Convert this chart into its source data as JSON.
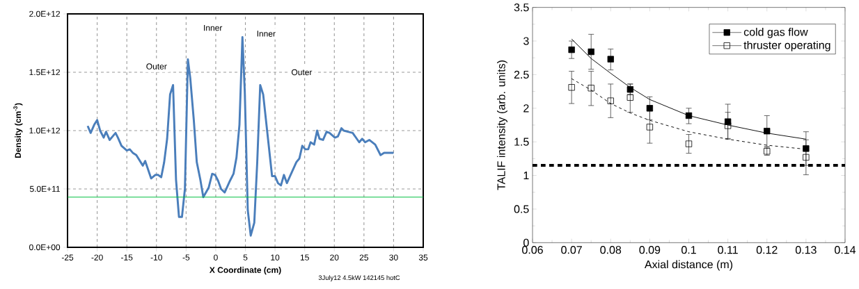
{
  "chart_data": [
    {
      "type": "line",
      "xlabel": "X Coordinate (cm)",
      "ylabel": "Density (cm$^{-3}$)",
      "xlim": [
        -25,
        35
      ],
      "ylim": [
        0,
        2000000000000.0
      ],
      "xticks": [
        -25,
        -20,
        -15,
        -10,
        -5,
        0,
        5,
        10,
        15,
        20,
        25,
        30,
        35
      ],
      "yticks": [
        {
          "value": 0,
          "label": "0.0E+00"
        },
        {
          "value": 500000000000.0,
          "label": "5.0E+11"
        },
        {
          "value": 1000000000000.0,
          "label": "1.0E+12"
        },
        {
          "value": 1500000000000.0,
          "label": "1.5E+12"
        },
        {
          "value": 2000000000000.0,
          "label": "2.0E+12"
        }
      ],
      "grid": true,
      "legend": false,
      "marker": "none",
      "line_style": "solid",
      "series": [
        {
          "color": "#4a7ebb",
          "x": [
            -21.6,
            -21.1,
            -20.5,
            -20,
            -19.5,
            -18.9,
            -18.5,
            -17.9,
            -16.9,
            -16.5,
            -15.9,
            -15.0,
            -14.5,
            -14.0,
            -13.4,
            -12.3,
            -11.9,
            -10.9,
            -10.2,
            -9.7,
            -9.2,
            -8.7,
            -8.2,
            -7.7,
            -7.2,
            -6.7,
            -6.2,
            -5.7,
            -5.2,
            -4.7,
            -4.3,
            -3.7,
            -3.2,
            -2.6,
            -2.1,
            -1.2,
            -0.6,
            -0.1,
            0.4,
            0.9,
            1.5,
            2.4,
            3.0,
            3.5,
            4.0,
            4.5,
            4.9,
            5.4,
            5.9,
            6.5,
            7.0,
            7.5,
            8.0,
            9.5,
            10.0,
            10.5,
            11.0,
            11.5,
            12.0,
            13.6,
            14.1,
            14.6,
            15.1,
            15.6,
            16.0,
            16.6,
            17.1,
            17.5,
            18.1,
            18.7,
            19.2,
            20.1,
            20.6,
            21.2,
            21.6,
            22.3,
            23.1,
            24.2,
            24.7,
            25.2,
            25.9,
            26.9,
            27.8,
            28.4,
            30.0
          ],
          "values": [
            1040000000000.0,
            980000000000.0,
            1050000000000.0,
            1090000000000.0,
            1000000000000.0,
            940000000000.0,
            990000000000.0,
            920000000000.0,
            980000000000.0,
            940000000000.0,
            870000000000.0,
            830000000000.0,
            840000000000.0,
            810000000000.0,
            790000000000.0,
            700000000000.0,
            740000000000.0,
            590000000000.0,
            620000000000.0,
            620000000000.0,
            600000000000.0,
            730000000000.0,
            930000000000.0,
            1310000000000.0,
            1390000000000.0,
            580000000000.0,
            260000000000.0,
            260000000000.0,
            500000000000.0,
            1610000000000.0,
            1450000000000.0,
            1090000000000.0,
            730000000000.0,
            580000000000.0,
            430000000000.0,
            510000000000.0,
            630000000000.0,
            620000000000.0,
            570000000000.0,
            500000000000.0,
            470000000000.0,
            570000000000.0,
            630000000000.0,
            770000000000.0,
            1050000000000.0,
            1800000000000.0,
            1330000000000.0,
            320000000000.0,
            100000000000.0,
            210000000000.0,
            730000000000.0,
            1390000000000.0,
            1310000000000.0,
            610000000000.0,
            610000000000.0,
            550000000000.0,
            530000000000.0,
            620000000000.0,
            550000000000.0,
            730000000000.0,
            760000000000.0,
            870000000000.0,
            840000000000.0,
            840000000000.0,
            900000000000.0,
            880000000000.0,
            1000000000000.0,
            930000000000.0,
            920000000000.0,
            990000000000.0,
            980000000000.0,
            940000000000.0,
            950000000000.0,
            1020000000000.0,
            1000000000000.0,
            990000000000.0,
            980000000000.0,
            900000000000.0,
            930000000000.0,
            900000000000.0,
            920000000000.0,
            880000000000.0,
            790000000000.0,
            810000000000.0,
            810000000000.0
          ]
        }
      ],
      "ref_lines": [
        {
          "axis": "y",
          "value": 430000000000.0,
          "color": "#00c040",
          "line_style": "solid"
        }
      ],
      "annotations": [
        {
          "text": "Outer",
          "x": -10,
          "y": 1550000000000.0
        },
        {
          "text": "Inner",
          "x": -0.5,
          "y": 1880000000000.0
        },
        {
          "text": "Inner",
          "x": 8.5,
          "y": 1830000000000.0
        },
        {
          "text": "Outer",
          "x": 14.5,
          "y": 1500000000000.0
        },
        "3July12 4.5kW 142145 hotC"
      ]
    },
    {
      "type": "scatter",
      "xlabel": "Axial distance (m)",
      "ylabel": "TALIF intensity (arb. units)",
      "xlim": [
        0.06,
        0.14
      ],
      "ylim": [
        0,
        3.5
      ],
      "xticks": [
        0.06,
        0.07,
        0.08,
        0.09,
        0.1,
        0.11,
        0.12,
        0.13,
        0.14
      ],
      "yticks": [
        0,
        0.5,
        1,
        1.5,
        2,
        2.5,
        3,
        3.5
      ],
      "legend": "top right",
      "marker": "square",
      "x": [
        0.07,
        0.075,
        0.08,
        0.085,
        0.09,
        0.1,
        0.11,
        0.12,
        0.13
      ],
      "series": [
        {
          "name": "cold gas flow",
          "color": "#000000",
          "values": [
            2.87,
            2.84,
            2.73,
            2.28,
            2.0,
            1.89,
            1.8,
            1.66,
            1.4
          ],
          "errors": [
            [
              2.74,
              3.0
            ],
            [
              2.58,
              3.1
            ],
            [
              2.57,
              2.88
            ],
            [
              2.2,
              2.36
            ],
            [
              1.83,
              2.17
            ],
            [
              1.77,
              2.0
            ],
            [
              1.54,
              2.06
            ],
            [
              1.43,
              1.89
            ],
            [
              1.15,
              1.65
            ]
          ]
        },
        {
          "name": "thruster operating",
          "color": "#000000",
          "values": [
            2.31,
            2.3,
            2.11,
            2.16,
            1.72,
            1.47,
            1.74,
            1.36,
            1.27
          ],
          "errors": [
            [
              2.07,
              2.55
            ],
            [
              2.04,
              2.55
            ],
            [
              1.86,
              2.36
            ],
            [
              1.94,
              2.36
            ],
            [
              1.48,
              1.96
            ],
            [
              1.33,
              1.61
            ],
            [
              1.55,
              1.94
            ],
            [
              1.3,
              1.42
            ],
            [
              1.01,
              1.53
            ]
          ]
        },
        {
          "type": "line",
          "color": "#000000",
          "marker": "none",
          "line_style": "solid",
          "x": [
            0.07,
            0.075,
            0.08,
            0.085,
            0.09,
            0.1,
            0.11,
            0.12,
            0.13
          ],
          "values": [
            3.03,
            2.74,
            2.52,
            2.31,
            2.13,
            1.89,
            1.75,
            1.63,
            1.54
          ]
        },
        {
          "type": "line",
          "color": "#000000",
          "marker": "none",
          "line_style": "dashed",
          "x": [
            0.07,
            0.075,
            0.08,
            0.085,
            0.09,
            0.1,
            0.11,
            0.12,
            0.13
          ],
          "values": [
            2.44,
            2.27,
            2.07,
            1.93,
            1.82,
            1.65,
            1.54,
            1.45,
            1.39
          ]
        }
      ],
      "ref_lines": [
        {
          "axis": "y",
          "value": 1.15,
          "color": "#000000",
          "line_style": "dashed"
        }
      ]
    }
  ]
}
